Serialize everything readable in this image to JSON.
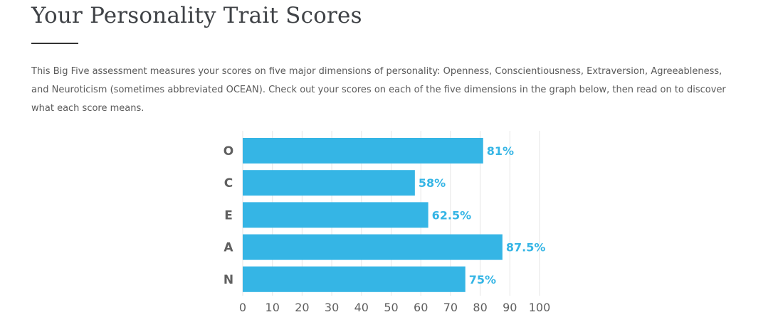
{
  "header": {
    "title": "Your Personality Trait Scores",
    "intro": "This Big Five assessment measures your scores on five major dimensions of personality: Openness, Conscientiousness, Extraversion, Agreeableness, and Neuroticism (sometimes abbreviated OCEAN). Check out your scores on each of the five dimensions in the graph below, then read on to discover what each score means."
  },
  "chart_data": {
    "type": "bar",
    "orientation": "horizontal",
    "categories": [
      "O",
      "C",
      "E",
      "A",
      "N"
    ],
    "values": [
      81,
      58,
      62.5,
      87.5,
      75
    ],
    "data_labels": [
      "81%",
      "58%",
      "62.5%",
      "87.5%",
      "75%"
    ],
    "xlim": [
      0,
      100
    ],
    "xticks": [
      0,
      10,
      20,
      30,
      40,
      50,
      60,
      70,
      80,
      90,
      100
    ],
    "grid": true,
    "colors": {
      "bar": "#35b5e5",
      "label": "#35b5e5",
      "grid": "#e6e6e6",
      "axis_text": "#5f5f5f"
    }
  }
}
